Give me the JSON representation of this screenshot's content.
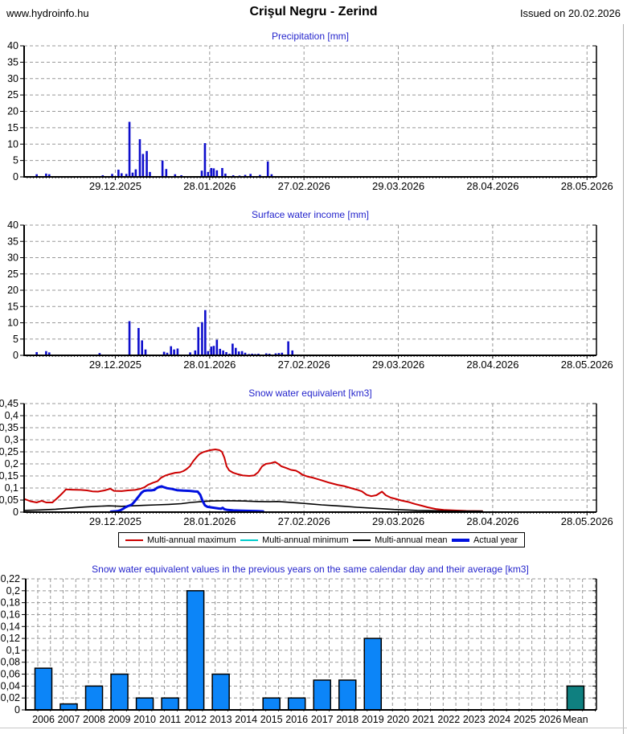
{
  "header": {
    "site": "www.hydroinfo.hu",
    "title": "Crişul Negru - Zerind",
    "issued": "Issued on 20.02.2026"
  },
  "colors": {
    "title_blue": "#2424cc",
    "grid_gray": "#989898",
    "axis_black": "#000000",
    "bar_blue_dark": "#0e0ecc",
    "bar_blue_bright": "#0c85f8",
    "bar_mean_teal": "#0f8080",
    "line_red": "#cc0000",
    "line_cyan": "#00cccc",
    "line_black": "#000000",
    "line_blue": "#0010e0"
  },
  "time_axis": {
    "days_total": 182,
    "ticks": [
      {
        "day": 29,
        "label": "29.12.2025"
      },
      {
        "day": 59,
        "label": "28.01.2026"
      },
      {
        "day": 89,
        "label": "27.02.2026"
      },
      {
        "day": 119,
        "label": "29.03.2026"
      },
      {
        "day": 149,
        "label": "28.04.2026"
      },
      {
        "day": 179,
        "label": "28.05.2026"
      }
    ]
  },
  "chart_data": [
    {
      "type": "bar",
      "title": "Precipitation [mm]",
      "ylabel": "mm",
      "ylim": [
        0,
        40
      ],
      "ystep": 5,
      "ylabels": [
        "0",
        "5",
        "10",
        "15",
        "20",
        "25",
        "30",
        "35",
        "40"
      ],
      "x_unit": "days since 30.11.2025",
      "bars": [
        [
          4,
          0.8
        ],
        [
          7,
          1.0
        ],
        [
          8,
          0.8
        ],
        [
          25,
          0.5
        ],
        [
          28,
          0.9
        ],
        [
          30,
          2.2
        ],
        [
          31,
          1.1
        ],
        [
          32.5,
          0.9
        ],
        [
          33.5,
          16.8
        ],
        [
          34.5,
          1.3
        ],
        [
          35.5,
          2.3
        ],
        [
          36.8,
          11.5
        ],
        [
          37.8,
          7.0
        ],
        [
          39,
          7.9
        ],
        [
          40,
          1.5
        ],
        [
          44,
          5.0
        ],
        [
          45.2,
          2.4
        ],
        [
          48,
          0.8
        ],
        [
          50,
          0.5
        ],
        [
          56.5,
          1.9
        ],
        [
          57.5,
          10.3
        ],
        [
          58.5,
          1.5
        ],
        [
          59.5,
          2.7
        ],
        [
          60.3,
          2.6
        ],
        [
          61.3,
          2.0
        ],
        [
          63,
          2.7
        ],
        [
          64,
          1.0
        ],
        [
          66.5,
          0.5
        ],
        [
          68.5,
          0.4
        ],
        [
          70.3,
          0.6
        ],
        [
          72,
          0.9
        ],
        [
          75,
          0.6
        ],
        [
          77.5,
          4.7
        ],
        [
          78.7,
          0.8
        ]
      ]
    },
    {
      "type": "bar",
      "title": "Surface water income [mm]",
      "ylabel": "mm",
      "ylim": [
        0,
        40
      ],
      "ystep": 5,
      "ylabels": [
        "0",
        "5",
        "10",
        "15",
        "20",
        "25",
        "30",
        "35",
        "40"
      ],
      "x_unit": "days since 30.11.2025",
      "bars": [
        [
          4,
          1.0
        ],
        [
          7,
          1.3
        ],
        [
          8,
          0.9
        ],
        [
          24,
          0.7
        ],
        [
          33.5,
          10.5
        ],
        [
          36.4,
          8.4
        ],
        [
          37.5,
          4.6
        ],
        [
          38.6,
          1.8
        ],
        [
          44.5,
          1.1
        ],
        [
          45.5,
          0.8
        ],
        [
          46.7,
          2.8
        ],
        [
          47.7,
          1.8
        ],
        [
          48.8,
          2.1
        ],
        [
          52.8,
          0.9
        ],
        [
          54.4,
          1.5
        ],
        [
          55.4,
          8.7
        ],
        [
          56.6,
          10.2
        ],
        [
          57.6,
          13.9
        ],
        [
          58.5,
          1.3
        ],
        [
          59.5,
          2.7
        ],
        [
          60.3,
          2.9
        ],
        [
          61.3,
          4.8
        ],
        [
          62.3,
          2.0
        ],
        [
          63.3,
          1.5
        ],
        [
          64.3,
          1.0
        ],
        [
          65.3,
          0.5
        ],
        [
          66.3,
          3.6
        ],
        [
          67.3,
          2.3
        ],
        [
          68.3,
          1.2
        ],
        [
          69.3,
          1.3
        ],
        [
          70.3,
          0.8
        ],
        [
          71.5,
          0.4
        ],
        [
          72.5,
          0.5
        ],
        [
          73.5,
          0.4
        ],
        [
          74.5,
          0.5
        ],
        [
          77,
          0.6
        ],
        [
          78,
          0.5
        ],
        [
          80,
          0.6
        ],
        [
          81,
          0.7
        ],
        [
          82,
          0.8
        ],
        [
          84,
          4.3
        ],
        [
          85.3,
          1.5
        ]
      ]
    },
    {
      "type": "line",
      "title": "Snow water equivalent [km3]",
      "ylabel": "km3",
      "ylim": [
        0,
        0.45
      ],
      "ystep": 0.05,
      "ylabels": [
        "0",
        "0,05",
        "0,1",
        "0,15",
        "0,2",
        "0,25",
        "0,3",
        "0,35",
        "0,4",
        "0,45"
      ],
      "x_unit": "days since 30.11.2025",
      "series": [
        {
          "name": "Multi-annual maximum",
          "color": "#cc0000",
          "width": 2,
          "points": [
            [
              0,
              0.055
            ],
            [
              2,
              0.045
            ],
            [
              4,
              0.04
            ],
            [
              5.6,
              0.047
            ],
            [
              7,
              0.04
            ],
            [
              9,
              0.04
            ],
            [
              10.7,
              0.06
            ],
            [
              12.3,
              0.08
            ],
            [
              13.3,
              0.094
            ],
            [
              15.3,
              0.093
            ],
            [
              18,
              0.092
            ],
            [
              20,
              0.09
            ],
            [
              21.7,
              0.086
            ],
            [
              23.5,
              0.085
            ],
            [
              25.6,
              0.09
            ],
            [
              27.4,
              0.097
            ],
            [
              28.6,
              0.088
            ],
            [
              31,
              0.087
            ],
            [
              33,
              0.09
            ],
            [
              35.3,
              0.092
            ],
            [
              36.8,
              0.096
            ],
            [
              38.3,
              0.103
            ],
            [
              39.4,
              0.113
            ],
            [
              41,
              0.122
            ],
            [
              42.4,
              0.128
            ],
            [
              43.5,
              0.142
            ],
            [
              45,
              0.152
            ],
            [
              46.5,
              0.158
            ],
            [
              48,
              0.163
            ],
            [
              49.6,
              0.165
            ],
            [
              50.6,
              0.17
            ],
            [
              51.6,
              0.178
            ],
            [
              52.7,
              0.19
            ],
            [
              53.7,
              0.21
            ],
            [
              54.7,
              0.226
            ],
            [
              55.7,
              0.24
            ],
            [
              56.8,
              0.248
            ],
            [
              57.8,
              0.252
            ],
            [
              59.3,
              0.257
            ],
            [
              60.8,
              0.26
            ],
            [
              62.1,
              0.257
            ],
            [
              62.9,
              0.25
            ],
            [
              63.7,
              0.225
            ],
            [
              64.4,
              0.19
            ],
            [
              65.2,
              0.173
            ],
            [
              66.5,
              0.163
            ],
            [
              68,
              0.157
            ],
            [
              69.5,
              0.152
            ],
            [
              71.6,
              0.15
            ],
            [
              73.1,
              0.152
            ],
            [
              74.4,
              0.165
            ],
            [
              75.7,
              0.19
            ],
            [
              76.9,
              0.2
            ],
            [
              78.5,
              0.203
            ],
            [
              79.8,
              0.208
            ],
            [
              80.8,
              0.2
            ],
            [
              81.8,
              0.19
            ],
            [
              83.3,
              0.183
            ],
            [
              84.9,
              0.175
            ],
            [
              86.4,
              0.172
            ],
            [
              87.4,
              0.165
            ],
            [
              88.5,
              0.155
            ],
            [
              90,
              0.148
            ],
            [
              92,
              0.142
            ],
            [
              94.6,
              0.132
            ],
            [
              97,
              0.122
            ],
            [
              99.7,
              0.113
            ],
            [
              101.7,
              0.108
            ],
            [
              103.8,
              0.1
            ],
            [
              105.8,
              0.093
            ],
            [
              107.4,
              0.086
            ],
            [
              108.9,
              0.072
            ],
            [
              110.4,
              0.066
            ],
            [
              112,
              0.07
            ],
            [
              113.8,
              0.085
            ],
            [
              115,
              0.07
            ],
            [
              116.6,
              0.06
            ],
            [
              118.1,
              0.055
            ],
            [
              120,
              0.048
            ],
            [
              122.2,
              0.042
            ],
            [
              124.2,
              0.034
            ],
            [
              126.3,
              0.027
            ],
            [
              128.3,
              0.02
            ],
            [
              130.9,
              0.013
            ],
            [
              133.4,
              0.009
            ],
            [
              136.8,
              0.007
            ],
            [
              140.6,
              0.005
            ],
            [
              145.7,
              0.004
            ]
          ]
        },
        {
          "name": "Multi-annual minimum",
          "color": "#00cccc",
          "width": 2,
          "points": [
            [
              0,
              0
            ],
            [
              146,
              0
            ]
          ]
        },
        {
          "name": "Multi-annual mean",
          "color": "#000000",
          "width": 1.6,
          "points": [
            [
              0,
              0.007
            ],
            [
              5,
              0.009
            ],
            [
              10,
              0.012
            ],
            [
              15,
              0.017
            ],
            [
              19,
              0.021
            ],
            [
              23,
              0.024
            ],
            [
              27,
              0.026
            ],
            [
              31,
              0.024
            ],
            [
              34.5,
              0.026
            ],
            [
              38,
              0.028
            ],
            [
              42,
              0.03
            ],
            [
              46,
              0.032
            ],
            [
              50,
              0.035
            ],
            [
              53,
              0.04
            ],
            [
              56,
              0.043
            ],
            [
              59,
              0.046
            ],
            [
              62.6,
              0.047
            ],
            [
              66.5,
              0.047
            ],
            [
              70,
              0.046
            ],
            [
              74,
              0.044
            ],
            [
              78,
              0.043
            ],
            [
              80.5,
              0.044
            ],
            [
              83,
              0.042
            ],
            [
              87,
              0.038
            ],
            [
              91,
              0.034
            ],
            [
              94.6,
              0.03
            ],
            [
              98.4,
              0.027
            ],
            [
              102,
              0.024
            ],
            [
              106,
              0.02
            ],
            [
              110,
              0.017
            ],
            [
              114,
              0.014
            ],
            [
              117.6,
              0.011
            ],
            [
              121.4,
              0.009
            ],
            [
              125,
              0.007
            ],
            [
              129,
              0.006
            ],
            [
              133,
              0.005
            ],
            [
              138,
              0.004
            ],
            [
              145.7,
              0.004
            ]
          ]
        },
        {
          "name": "Actual year",
          "color": "#0010e0",
          "width": 3,
          "points": [
            [
              27.6,
              0.002
            ],
            [
              29.7,
              0.004
            ],
            [
              30.7,
              0.008
            ],
            [
              31.4,
              0.013
            ],
            [
              32.2,
              0.02
            ],
            [
              33,
              0.025
            ],
            [
              33.7,
              0.028
            ],
            [
              34.3,
              0.032
            ],
            [
              35,
              0.042
            ],
            [
              35.8,
              0.055
            ],
            [
              36.6,
              0.068
            ],
            [
              37.3,
              0.08
            ],
            [
              38.1,
              0.088
            ],
            [
              39.1,
              0.09
            ],
            [
              40.4,
              0.09
            ],
            [
              41.4,
              0.092
            ],
            [
              42.2,
              0.1
            ],
            [
              42.9,
              0.104
            ],
            [
              43.7,
              0.107
            ],
            [
              44.5,
              0.103
            ],
            [
              45.5,
              0.099
            ],
            [
              47,
              0.096
            ],
            [
              48.6,
              0.091
            ],
            [
              50.6,
              0.089
            ],
            [
              52.7,
              0.088
            ],
            [
              54.2,
              0.086
            ],
            [
              55.2,
              0.085
            ],
            [
              56,
              0.072
            ],
            [
              56.5,
              0.055
            ],
            [
              57,
              0.04
            ],
            [
              57.5,
              0.028
            ],
            [
              58.3,
              0.022
            ],
            [
              59.3,
              0.02
            ],
            [
              60.8,
              0.017
            ],
            [
              61.9,
              0.015
            ],
            [
              62.6,
              0.014
            ],
            [
              63.1,
              0.018
            ],
            [
              63.7,
              0.012
            ],
            [
              64.7,
              0.009
            ],
            [
              66.5,
              0.007
            ],
            [
              69,
              0.006
            ],
            [
              71.6,
              0.005
            ],
            [
              74.1,
              0.004
            ],
            [
              76,
              0.003
            ]
          ]
        }
      ]
    },
    {
      "type": "year-bar",
      "title": "Snow water equivalent values in the previous years on the same calendar day and their average [km3]",
      "ylabel": "km3",
      "ylim": [
        0,
        0.22
      ],
      "ystep": 0.02,
      "ylabels": [
        "0",
        "0,02",
        "0,04",
        "0,06",
        "0,08",
        "0,1",
        "0,12",
        "0,14",
        "0,16",
        "0,18",
        "0,2",
        "0,22"
      ],
      "categories": [
        "2006",
        "2007",
        "2008",
        "2009",
        "2010",
        "2011",
        "2012",
        "2013",
        "2014",
        "2015",
        "2016",
        "2017",
        "2018",
        "2019",
        "2020",
        "2021",
        "2022",
        "2023",
        "2024",
        "2025",
        "2026",
        "Mean"
      ],
      "values": [
        0.07,
        0.01,
        0.04,
        0.06,
        0.02,
        0.02,
        0.2,
        0.06,
        0,
        0.02,
        0.02,
        0.05,
        0.05,
        0.12,
        0,
        0,
        0,
        0,
        0,
        0,
        0,
        0.04
      ],
      "bar_color": "#0c85f8",
      "mean_color": "#0f8080"
    }
  ],
  "legend": {
    "items": [
      {
        "label": "Multi-annual maximum",
        "color": "#cc0000",
        "thick": false
      },
      {
        "label": "Multi-annual minimum",
        "color": "#00cccc",
        "thick": false
      },
      {
        "label": "Multi-annual mean",
        "color": "#000000",
        "thick": false
      },
      {
        "label": "Actual year",
        "color": "#0010e0",
        "thick": true
      }
    ]
  }
}
